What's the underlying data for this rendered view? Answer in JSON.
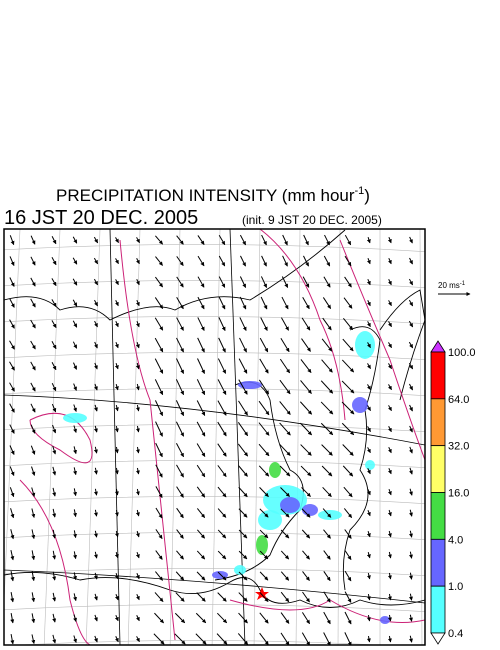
{
  "title": {
    "main": "PRECIPITATION INTENSITY (mm hour",
    "exponent": "-1",
    "end": ")"
  },
  "time": "16 JST 20 DEC. 2005",
  "init": "(init. 9 JST 20 DEC. 2005)",
  "vector_scale": {
    "text": "20 ms",
    "exponent": "-1"
  },
  "colorbar": {
    "labels": [
      "100.0",
      "64.0",
      "32.0",
      "16.0",
      "4.0",
      "1.0",
      "0.4"
    ],
    "colors": [
      "#ff0000",
      "#ff9933",
      "#ffff66",
      "#44dd44",
      "#6666ff",
      "#55ffff"
    ],
    "over_color": "#cc33ff",
    "under_color": "#ffffff"
  }
}
